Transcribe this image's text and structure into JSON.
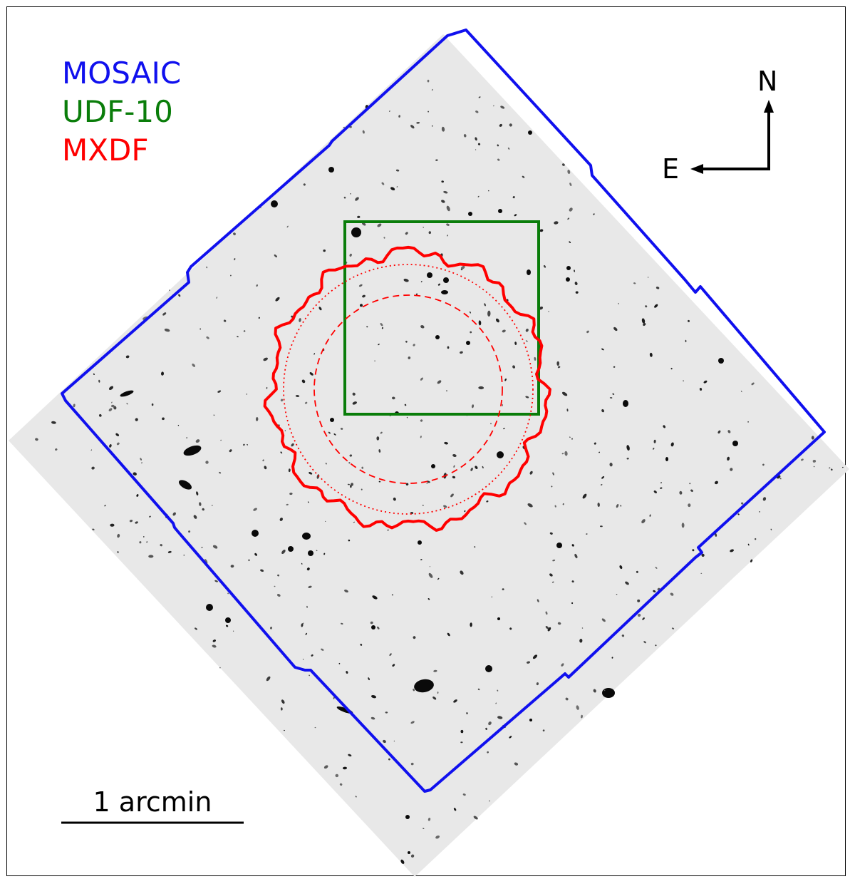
{
  "legend": {
    "items": [
      {
        "label": "MOSAIC",
        "color": "#1010ee"
      },
      {
        "label": "UDF-10",
        "color": "#0a7d0a"
      },
      {
        "label": "MXDF",
        "color": "#ff0000"
      }
    ]
  },
  "compass": {
    "north": "N",
    "east": "E"
  },
  "scalebar": {
    "label": "1 arcmin"
  },
  "colors": {
    "background_field": "#e8e8e8",
    "mosaic": "#1010ee",
    "udf10": "#0a7d0a",
    "mxdf": "#ff0000",
    "frame": "#000000"
  }
}
